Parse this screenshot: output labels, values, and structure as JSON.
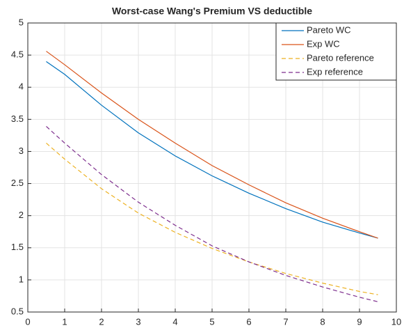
{
  "chart_data": {
    "type": "line",
    "title": "Worst-case Wang's Premium VS deductible",
    "x": [
      0.5,
      1,
      2,
      3,
      4,
      5,
      6,
      7,
      8,
      9,
      9.5
    ],
    "series": [
      {
        "name": "Pareto WC",
        "color": "#0072bd",
        "line_style": "solid",
        "values": [
          4.4,
          4.2,
          3.72,
          3.29,
          2.93,
          2.62,
          2.35,
          2.11,
          1.9,
          1.73,
          1.65
        ]
      },
      {
        "name": "Exp WC",
        "color": "#d95319",
        "line_style": "solid",
        "values": [
          4.56,
          4.35,
          3.91,
          3.5,
          3.13,
          2.78,
          2.48,
          2.2,
          1.96,
          1.75,
          1.65
        ]
      },
      {
        "name": "Pareto reference",
        "color": "#edb120",
        "line_style": "dashed",
        "values": [
          3.13,
          2.88,
          2.42,
          2.04,
          1.74,
          1.49,
          1.28,
          1.1,
          0.95,
          0.82,
          0.77
        ]
      },
      {
        "name": "Exp reference",
        "color": "#7e2f8e",
        "line_style": "dashed",
        "values": [
          3.39,
          3.13,
          2.64,
          2.21,
          1.85,
          1.53,
          1.28,
          1.07,
          0.89,
          0.73,
          0.66
        ]
      }
    ],
    "xlim": [
      0,
      10
    ],
    "xticks": [
      0,
      1,
      2,
      3,
      4,
      5,
      6,
      7,
      8,
      9,
      10
    ],
    "ylim": [
      0.5,
      5
    ],
    "yticks": [
      0.5,
      1,
      1.5,
      2,
      2.5,
      3,
      3.5,
      4,
      4.5,
      5
    ],
    "grid": true,
    "legend_position": "northeast"
  }
}
